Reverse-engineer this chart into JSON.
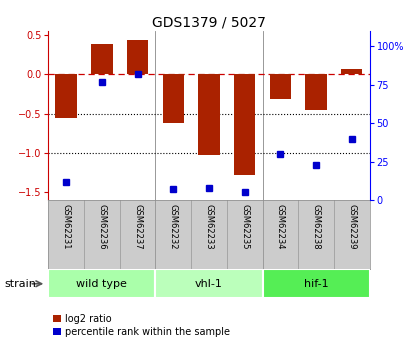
{
  "title": "GDS1379 / 5027",
  "samples": [
    "GSM62231",
    "GSM62236",
    "GSM62237",
    "GSM62232",
    "GSM62233",
    "GSM62235",
    "GSM62234",
    "GSM62238",
    "GSM62239"
  ],
  "log2_ratio": [
    -0.55,
    0.38,
    0.43,
    -0.62,
    -1.03,
    -1.28,
    -0.32,
    -0.45,
    0.07
  ],
  "percentile_rank": [
    12,
    77,
    82,
    7,
    8,
    5,
    30,
    23,
    40
  ],
  "groups": [
    {
      "label": "wild type",
      "span": [
        0,
        2
      ],
      "color": "#aaffaa"
    },
    {
      "label": "vhl-1",
      "span": [
        3,
        5
      ],
      "color": "#bbffbb"
    },
    {
      "label": "hif-1",
      "span": [
        6,
        8
      ],
      "color": "#55ee55"
    }
  ],
  "bar_color": "#aa2200",
  "dot_color": "#0000cc",
  "ylim_left": [
    -1.6,
    0.55
  ],
  "ylim_right": [
    0,
    110
  ],
  "yticks_left": [
    -1.5,
    -1.0,
    -0.5,
    0.0,
    0.5
  ],
  "yticks_right": [
    0,
    25,
    50,
    75,
    100
  ],
  "ytick_labels_right": [
    "0",
    "25",
    "50",
    "75",
    "100%"
  ],
  "hline_y": 0.0,
  "dotted_lines": [
    -0.5,
    -1.0
  ],
  "group_separators": [
    2.5,
    5.5
  ],
  "bg_color": "#ffffff",
  "label_bg": "#cccccc",
  "bar_width": 0.6
}
